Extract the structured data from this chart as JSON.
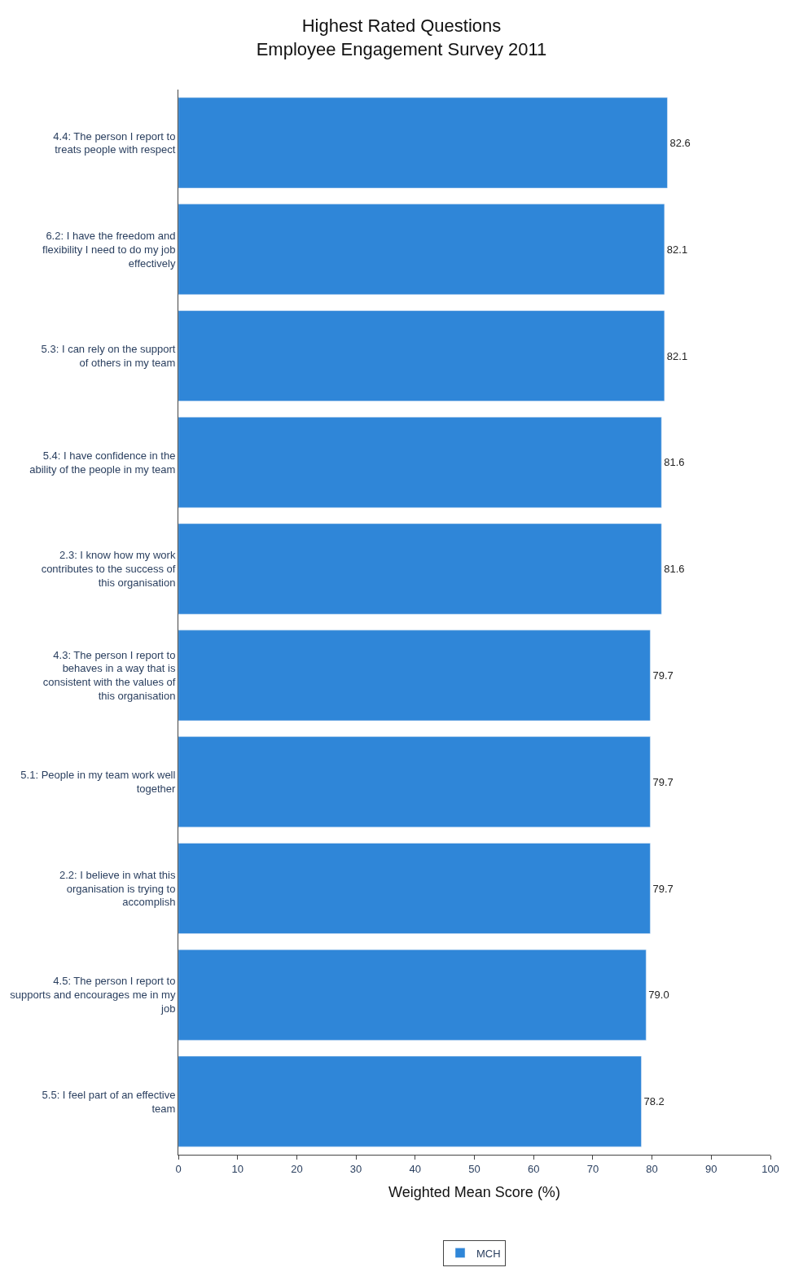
{
  "chart_data": {
    "type": "bar",
    "orientation": "horizontal",
    "title": "Highest Rated Questions\nEmployee Engagement Survey 2011",
    "xlabel": "Weighted Mean Score (%)",
    "categories": [
      "4.4: The person I report to treats people with respect",
      "6.2: I have the freedom and flexibility I need to do my job effectively",
      "5.3: I can rely on the support of others in my team",
      "5.4: I have confidence in the ability of the people in my team",
      "2.3: I know how my work contributes to the success of this organisation",
      "4.3: The person I report to behaves in a way that is consistent with the values of this organisation",
      "5.1: People in my team work well together",
      "2.2: I believe in what this organisation is trying to accomplish",
      "4.5: The person I report to supports and encourages me in my job",
      "5.5: I feel part of an effective team"
    ],
    "series": [
      {
        "name": "MCH",
        "color": "#2f86d8",
        "values": [
          82.6,
          82.1,
          82.1,
          81.6,
          81.6,
          79.7,
          79.7,
          79.7,
          79.0,
          78.2
        ],
        "value_labels": [
          "82.6",
          "82.1",
          "82.1",
          "81.6",
          "81.6",
          "79.7",
          "79.7",
          "79.7",
          "79.0",
          "78.2"
        ]
      }
    ],
    "xlim": [
      0,
      100
    ],
    "xticks": [
      0,
      10,
      20,
      30,
      40,
      50,
      60,
      70,
      80,
      90,
      100
    ],
    "legend": "bottom"
  }
}
